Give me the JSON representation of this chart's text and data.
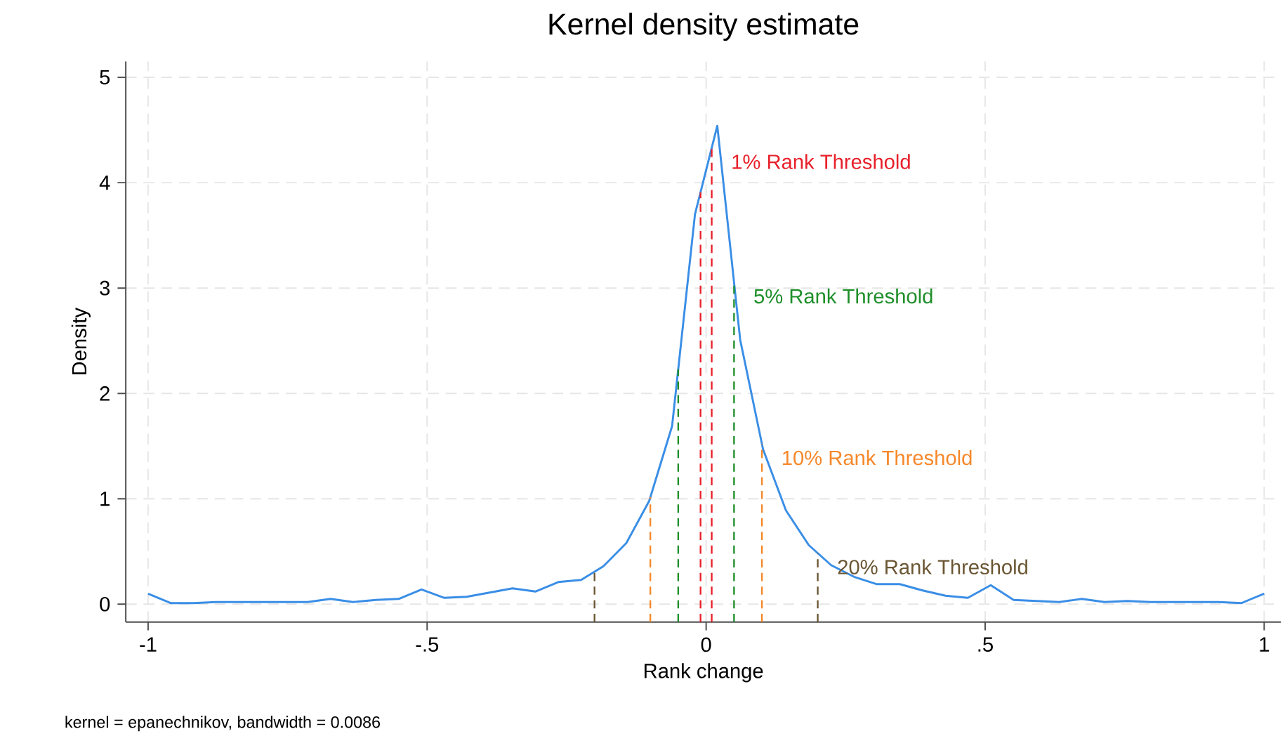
{
  "chart_data": {
    "type": "line",
    "title": "Kernel density estimate",
    "xlabel": "Rank change",
    "ylabel": "Density",
    "annotations": [
      "kernel = epanechnikov, bandwidth = 0.0086"
    ],
    "x": [
      -1,
      -0.959,
      -0.918,
      -0.878,
      -0.837,
      -0.796,
      -0.755,
      -0.714,
      -0.673,
      -0.633,
      -0.592,
      -0.551,
      -0.51,
      -0.469,
      -0.429,
      -0.388,
      -0.347,
      -0.306,
      -0.265,
      -0.224,
      -0.184,
      -0.143,
      -0.102,
      -0.061,
      -0.02,
      0.02,
      0.061,
      0.102,
      0.143,
      0.184,
      0.224,
      0.265,
      0.306,
      0.347,
      0.388,
      0.429,
      0.469,
      0.51,
      0.551,
      0.592,
      0.633,
      0.673,
      0.714,
      0.755,
      0.796,
      0.837,
      0.878,
      0.918,
      0.959,
      1
    ],
    "series": [
      {
        "color": "#3a8ee6",
        "values": [
          0.1,
          0.01,
          0.01,
          0.02,
          0.02,
          0.02,
          0.02,
          0.02,
          0.05,
          0.02,
          0.04,
          0.05,
          0.14,
          0.06,
          0.07,
          0.11,
          0.15,
          0.12,
          0.21,
          0.23,
          0.36,
          0.58,
          0.98,
          1.69,
          3.7,
          4.54,
          2.51,
          1.47,
          0.89,
          0.56,
          0.37,
          0.26,
          0.19,
          0.19,
          0.13,
          0.08,
          0.06,
          0.18,
          0.04,
          0.03,
          0.02,
          0.05,
          0.02,
          0.03,
          0.02,
          0.02,
          0.02,
          0.02,
          0.01,
          0.1
        ]
      }
    ],
    "xlim": [
      -1.04,
      1.03
    ],
    "ylim": [
      -0.17,
      5.15
    ],
    "xticks": [
      {
        "value": -1,
        "label": "-1"
      },
      {
        "value": -0.5,
        "label": "-.5"
      },
      {
        "value": 0,
        "label": "0"
      },
      {
        "value": 0.5,
        "label": ".5"
      },
      {
        "value": 1,
        "label": "1"
      }
    ],
    "yticks": [
      0,
      1,
      2,
      3,
      4,
      5
    ],
    "grid": true,
    "line_style": "solid",
    "ref_lines": [
      {
        "axis": "x",
        "value": -0.01,
        "label": null,
        "color": "#e8202a",
        "line_style": "dashed"
      },
      {
        "axis": "x",
        "value": 0.01,
        "label": "1% Rank Threshold",
        "color": "#e8202a",
        "line_style": "dashed"
      },
      {
        "axis": "x",
        "value": -0.05,
        "label": null,
        "color": "#1f8f2a",
        "line_style": "dashed"
      },
      {
        "axis": "x",
        "value": 0.05,
        "label": "5% Rank Threshold",
        "color": "#1f8f2a",
        "line_style": "dashed"
      },
      {
        "axis": "x",
        "value": -0.1,
        "label": null,
        "color": "#f5882a",
        "line_style": "dashed"
      },
      {
        "axis": "x",
        "value": 0.1,
        "label": "10% Rank Threshold",
        "color": "#f5882a",
        "line_style": "dashed"
      },
      {
        "axis": "x",
        "value": -0.2,
        "label": null,
        "color": "#6b5633",
        "line_style": "dashed"
      },
      {
        "axis": "x",
        "value": 0.2,
        "label": "20% Rank Threshold",
        "color": "#6b5633",
        "line_style": "dashed"
      }
    ]
  }
}
